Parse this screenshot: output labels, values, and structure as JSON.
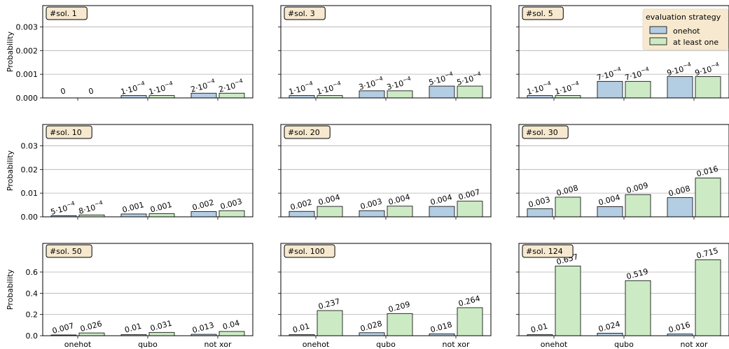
{
  "chart_data": {
    "type": "bar",
    "layout": "3x3 small multiples",
    "categories": [
      "onehot",
      "qubo",
      "not xor"
    ],
    "ylabel": "Probability",
    "grid": "horizontal",
    "legend": {
      "title": "evaluation strategy",
      "placement": "top-right",
      "entries": [
        "onehot",
        "at least one"
      ]
    },
    "colors": {
      "onehot": "#b3cde3",
      "at least one": "#ccebc5"
    },
    "rows": [
      {
        "ylim": [
          0,
          0.0039
        ],
        "yticks": [
          0,
          0.001,
          0.002,
          0.003
        ],
        "yticklabels": [
          "0.000",
          "0.001",
          "0.002",
          "0.003"
        ]
      },
      {
        "ylim": [
          0,
          0.039
        ],
        "yticks": [
          0,
          0.01,
          0.02,
          0.03
        ],
        "yticklabels": [
          "0.00",
          "0.01",
          "0.02",
          "0.03"
        ]
      },
      {
        "ylim": [
          0,
          0.87
        ],
        "yticks": [
          0,
          0.2,
          0.4,
          0.6
        ],
        "yticklabels": [
          "0.0",
          "0.2",
          "0.4",
          "0.6"
        ]
      }
    ],
    "panels": [
      {
        "title": "#sol. 1",
        "onehot": [
          0,
          0.0001,
          0.0002
        ],
        "at_least_one": [
          0,
          0.0001,
          0.0002
        ],
        "onehot_labels": [
          "0",
          "1·10^-4",
          "2·10^-4"
        ],
        "at_least_one_labels": [
          "0",
          "1·10^-4",
          "2·10^-4"
        ]
      },
      {
        "title": "#sol. 3",
        "onehot": [
          0.0001,
          0.0003,
          0.0005
        ],
        "at_least_one": [
          0.0001,
          0.0003,
          0.0005
        ],
        "onehot_labels": [
          "1·10^-4",
          "3·10^-4",
          "5·10^-4"
        ],
        "at_least_one_labels": [
          "1·10^-4",
          "3·10^-4",
          "5·10^-4"
        ]
      },
      {
        "title": "#sol. 5",
        "onehot": [
          0.0001,
          0.0007,
          0.0009
        ],
        "at_least_one": [
          0.0001,
          0.0007,
          0.0009
        ],
        "onehot_labels": [
          "1·10^-4",
          "7·10^-4",
          "9·10^-4"
        ],
        "at_least_one_labels": [
          "1·10^-4",
          "7·10^-4",
          "9·10^-4"
        ]
      },
      {
        "title": "#sol. 10",
        "onehot": [
          0.0005,
          0.0012,
          0.0022
        ],
        "at_least_one": [
          0.0008,
          0.0013,
          0.0026
        ],
        "onehot_labels": [
          "5·10^-4",
          "0.001",
          "0.002"
        ],
        "at_least_one_labels": [
          "8·10^-4",
          "0.001",
          "0.003"
        ]
      },
      {
        "title": "#sol. 20",
        "onehot": [
          0.0023,
          0.0026,
          0.0044
        ],
        "at_least_one": [
          0.0044,
          0.0045,
          0.0066
        ],
        "onehot_labels": [
          "0.002",
          "0.003",
          "0.004"
        ],
        "at_least_one_labels": [
          "0.004",
          "0.004",
          "0.007"
        ]
      },
      {
        "title": "#sol. 30",
        "onehot": [
          0.0034,
          0.0043,
          0.0081
        ],
        "at_least_one": [
          0.0083,
          0.0094,
          0.0164
        ],
        "onehot_labels": [
          "0.003",
          "0.004",
          "0.008"
        ],
        "at_least_one_labels": [
          "0.008",
          "0.009",
          "0.016"
        ]
      },
      {
        "title": "#sol. 50",
        "onehot": [
          0.007,
          0.01,
          0.013
        ],
        "at_least_one": [
          0.026,
          0.031,
          0.04
        ],
        "onehot_labels": [
          "0.007",
          "0.01",
          "0.013"
        ],
        "at_least_one_labels": [
          "0.026",
          "0.031",
          "0.04"
        ]
      },
      {
        "title": "#sol. 100",
        "onehot": [
          0.01,
          0.028,
          0.018
        ],
        "at_least_one": [
          0.237,
          0.209,
          0.264
        ],
        "onehot_labels": [
          "0.01",
          "0.028",
          "0.018"
        ],
        "at_least_one_labels": [
          "0.237",
          "0.209",
          "0.264"
        ]
      },
      {
        "title": "#sol. 124",
        "onehot": [
          0.01,
          0.024,
          0.016
        ],
        "at_least_one": [
          0.657,
          0.519,
          0.715
        ],
        "onehot_labels": [
          "0.01",
          "0.024",
          "0.016"
        ],
        "at_least_one_labels": [
          "0.657",
          "0.519",
          "0.715"
        ]
      }
    ]
  }
}
